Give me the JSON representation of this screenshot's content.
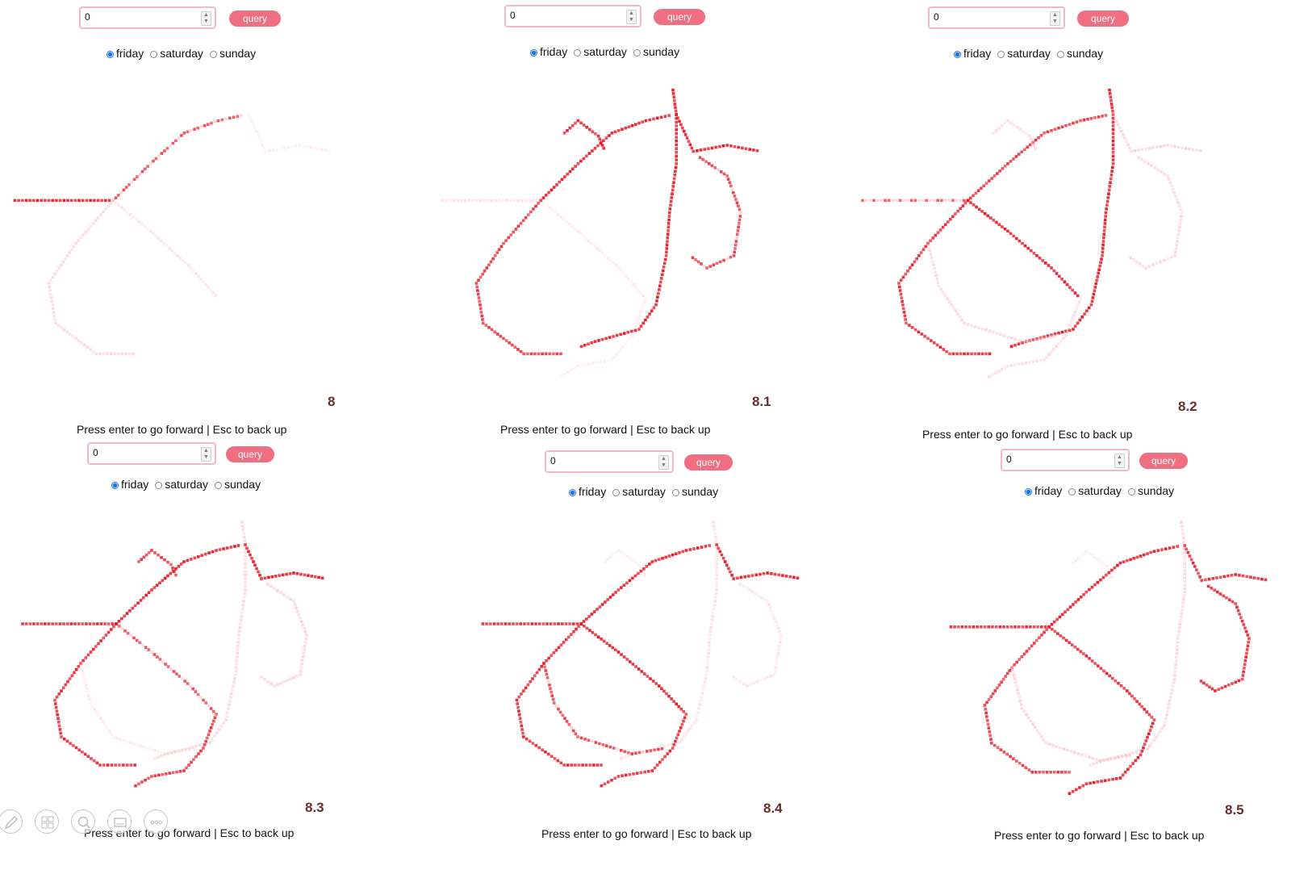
{
  "panels": [
    {
      "label": "8",
      "input_value": "0",
      "query_label": "query",
      "days": [
        "friday",
        "saturday",
        "sunday"
      ],
      "selected_day": "friday",
      "hint": "Press enter to go forward | Esc to back up"
    },
    {
      "label": "8.1",
      "input_value": "0",
      "query_label": "query",
      "days": [
        "friday",
        "saturday",
        "sunday"
      ],
      "selected_day": "friday",
      "hint": "Press enter to go forward | Esc to back up"
    },
    {
      "label": "8.2",
      "input_value": "0",
      "query_label": "query",
      "days": [
        "friday",
        "saturday",
        "sunday"
      ],
      "selected_day": "friday",
      "hint": "Press enter to go forward | Esc to back up"
    },
    {
      "label": "8.3",
      "input_value": "0",
      "query_label": "query",
      "days": [
        "friday",
        "saturday",
        "sunday"
      ],
      "selected_day": "friday",
      "hint": "Press enter to go forward | Esc to back up"
    },
    {
      "label": "8.4",
      "input_value": "0",
      "query_label": "query",
      "days": [
        "friday",
        "saturday",
        "sunday"
      ],
      "selected_day": "friday",
      "hint": "Press enter to go forward | Esc to back up"
    },
    {
      "label": "8.5",
      "input_value": "0",
      "query_label": "query",
      "days": [
        "friday",
        "saturday",
        "sunday"
      ],
      "selected_day": "friday",
      "hint": "Press enter to go forward | Esc to back up"
    }
  ],
  "colors": {
    "accent": "#ef6f80",
    "heat_strong": "#e8121f",
    "heat_light": "#f7b8bf",
    "radio_selected": "#1a73e8",
    "label": "#6b2e2e"
  },
  "toolbar_icons": [
    "pen-icon",
    "slides-icon",
    "zoom-icon",
    "subtitle-icon",
    "more-icon"
  ]
}
